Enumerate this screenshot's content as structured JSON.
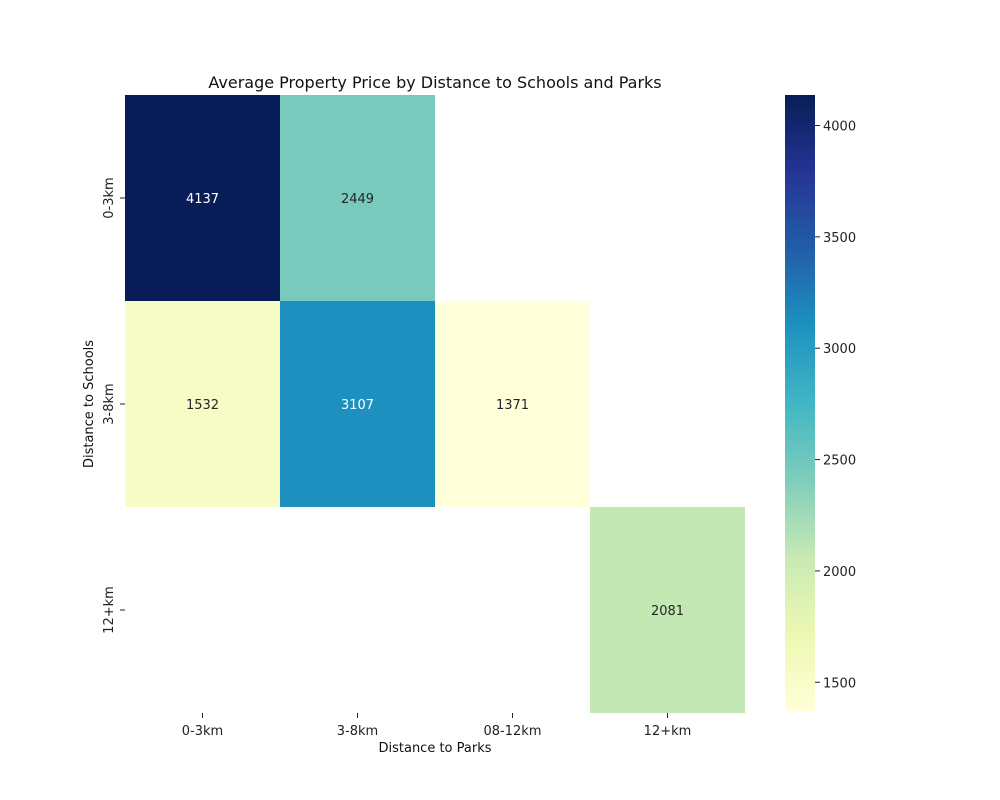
{
  "chart_data": {
    "type": "heatmap",
    "title": "Average Property Price by Distance to Schools and Parks",
    "xlabel": "Distance to Parks",
    "ylabel": "Distance to Schools",
    "x_categories": [
      "0-3km",
      "3-8km",
      "08-12km",
      "12+km"
    ],
    "y_categories": [
      "0-3km",
      "3-8km",
      "12+km"
    ],
    "values": [
      [
        4137,
        2449,
        null,
        null
      ],
      [
        1532,
        3107,
        1371,
        null
      ],
      [
        null,
        null,
        null,
        2081
      ]
    ],
    "colormap": "YlGnBu",
    "colorbar": {
      "min": 1371,
      "max": 4137,
      "ticks": [
        1500,
        2000,
        2500,
        3000,
        3500,
        4000
      ]
    },
    "annotations": true
  }
}
